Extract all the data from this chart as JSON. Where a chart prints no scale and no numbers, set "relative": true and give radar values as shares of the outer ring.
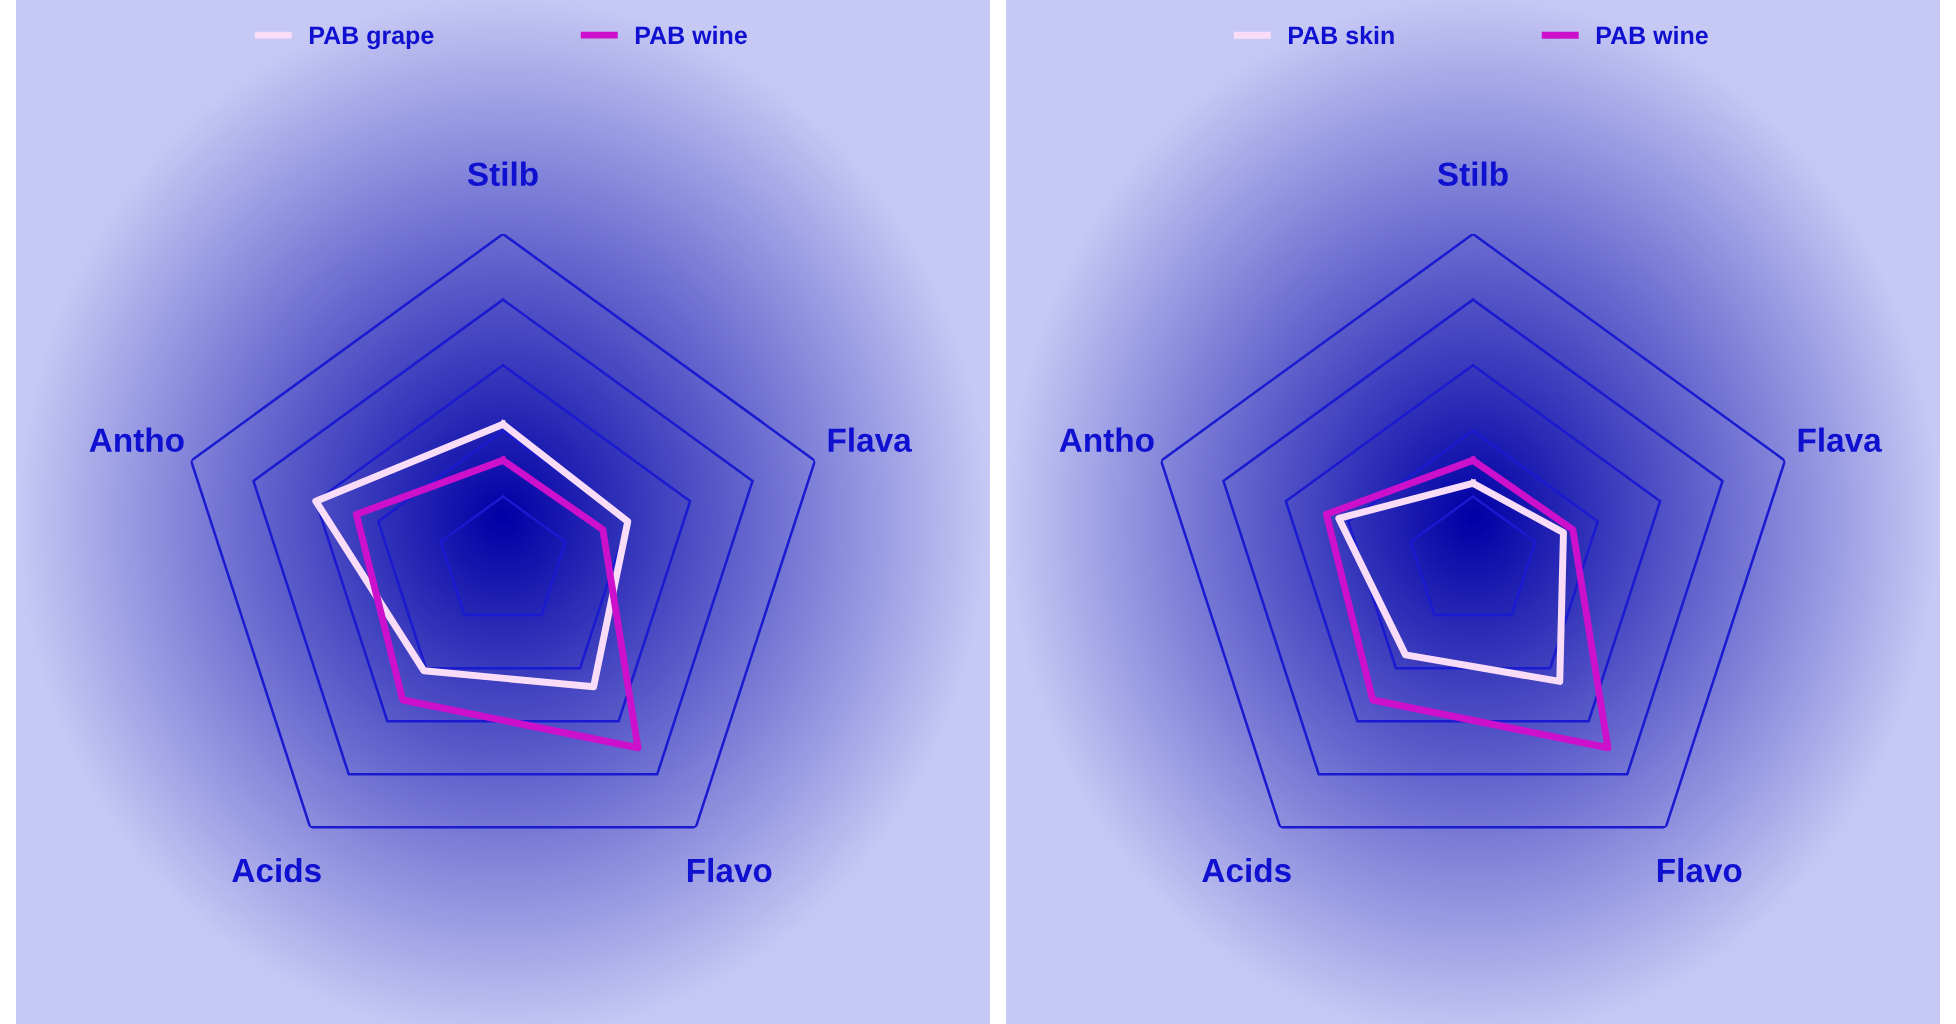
{
  "chart_data": [
    {
      "type": "radar",
      "relative": true,
      "grid": true,
      "legend": "top",
      "line_style": "solid",
      "marker": "none",
      "categories": [
        "Stilb",
        "Flava",
        "Flavo",
        "Acids",
        "Antho"
      ],
      "series": [
        {
          "name": "PAB grape",
          "color": "#f8dcf8",
          "values": [
            0.42,
            0.4,
            0.47,
            0.41,
            0.6
          ]
        },
        {
          "name": "PAB wine",
          "color": "#cc10cc",
          "values": [
            0.31,
            0.32,
            0.7,
            0.52,
            0.47
          ]
        }
      ]
    },
    {
      "type": "radar",
      "relative": true,
      "grid": true,
      "legend": "top",
      "line_style": "solid",
      "marker": "none",
      "categories": [
        "Stilb",
        "Flava",
        "Flavo",
        "Acids",
        "Antho"
      ],
      "series": [
        {
          "name": "PAB skin",
          "color": "#f8dcf8",
          "values": [
            0.24,
            0.29,
            0.45,
            0.35,
            0.43
          ]
        },
        {
          "name": "PAB wine",
          "color": "#cc10cc",
          "values": [
            0.31,
            0.32,
            0.7,
            0.52,
            0.47
          ]
        }
      ]
    }
  ]
}
